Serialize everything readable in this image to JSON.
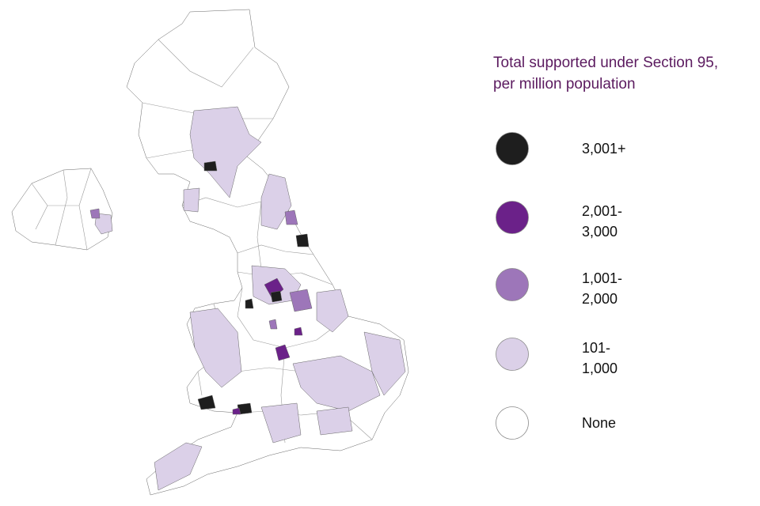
{
  "legend": {
    "title": "Total supported under Section 95, per million population",
    "items": [
      {
        "label": "3,001+",
        "color": "#1e1e1e"
      },
      {
        "label": "2,001-3,000",
        "color": "#6b2189"
      },
      {
        "label": "1,001-2,000",
        "color": "#9d76b9"
      },
      {
        "label": "101-1,000",
        "color": "#dbd0e8"
      },
      {
        "label": "None",
        "color": "#ffffff"
      }
    ]
  }
}
